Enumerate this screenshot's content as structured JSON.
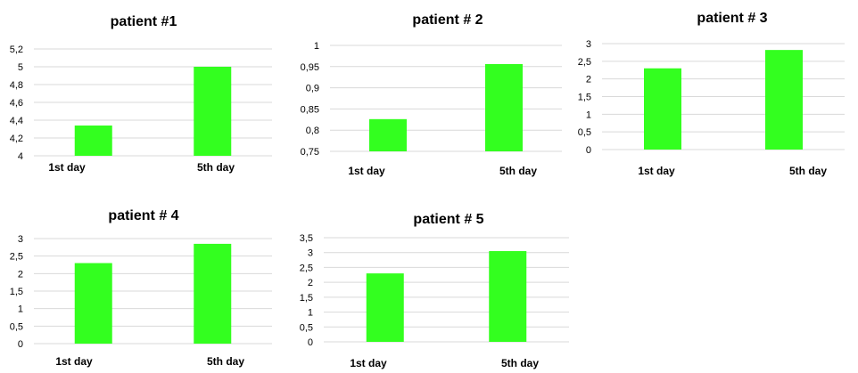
{
  "chart_data": [
    {
      "type": "bar",
      "title": "patient #1",
      "categories": [
        "1st day",
        "5th day"
      ],
      "values": [
        4.34,
        5.0
      ],
      "ylim": [
        4,
        5.2
      ],
      "yticks": [
        "4",
        "4,2",
        "4,4",
        "4,6",
        "4,8",
        "5",
        "5,2"
      ],
      "grid": true,
      "color": "#33ff1f"
    },
    {
      "type": "bar",
      "title": "patient # 2",
      "categories": [
        "1st day",
        "5th day"
      ],
      "values": [
        0.826,
        0.956
      ],
      "ylim": [
        0.75,
        1
      ],
      "yticks": [
        "0,75",
        "0,8",
        "0,85",
        "0,9",
        "0,95",
        "1"
      ],
      "grid": true,
      "color": "#33ff1f"
    },
    {
      "type": "bar",
      "title": "patient # 3",
      "categories": [
        "1st day",
        "5th day"
      ],
      "values": [
        2.3,
        2.82
      ],
      "ylim": [
        0,
        3
      ],
      "yticks": [
        "0",
        "0,5",
        "1",
        "1,5",
        "2",
        "2,5",
        "3"
      ],
      "grid": true,
      "color": "#33ff1f"
    },
    {
      "type": "bar",
      "title": "patient # 4",
      "categories": [
        "1st day",
        "5th day"
      ],
      "values": [
        2.3,
        2.85
      ],
      "ylim": [
        0,
        3
      ],
      "yticks": [
        "0",
        "0,5",
        "1",
        "1,5",
        "2",
        "2,5",
        "3"
      ],
      "grid": true,
      "color": "#33ff1f"
    },
    {
      "type": "bar",
      "title": "patient # 5",
      "categories": [
        "1st day",
        "5th day"
      ],
      "values": [
        2.3,
        3.05
      ],
      "ylim": [
        0,
        3.5
      ],
      "yticks": [
        "0",
        "0,5",
        "1",
        "1,5",
        "2",
        "2,5",
        "3",
        "3,5"
      ],
      "grid": true,
      "color": "#33ff1f"
    }
  ]
}
